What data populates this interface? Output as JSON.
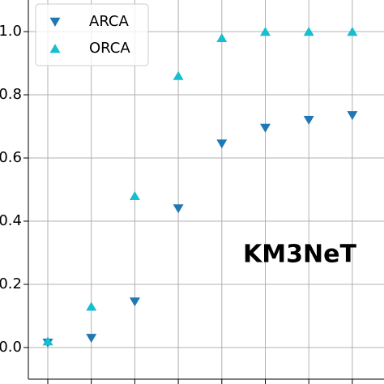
{
  "chart_data": {
    "type": "scatter",
    "annotation": "KM3NeT",
    "categories": [
      null,
      null,
      null,
      null,
      null,
      null,
      null,
      null
    ],
    "series": [
      {
        "name": "ARCA",
        "color": "#1f77b4",
        "marker": "triangle-down",
        "values": [
          0.015,
          0.03,
          0.145,
          0.44,
          0.645,
          0.695,
          0.72,
          0.735
        ]
      },
      {
        "name": "ORCA",
        "color": "#17becf",
        "marker": "triangle-up",
        "values": [
          0.02,
          0.13,
          0.48,
          0.86,
          0.98,
          1.0,
          1.0,
          1.0
        ]
      }
    ],
    "ylim": [
      -0.1,
      1.1
    ],
    "yticks": [
      {
        "value": 0,
        "label": "0.0"
      },
      0.2,
      0.4,
      0.6,
      0.8,
      {
        "value": 1,
        "label": "1.0"
      }
    ],
    "grid": true,
    "legend": "upper left"
  }
}
